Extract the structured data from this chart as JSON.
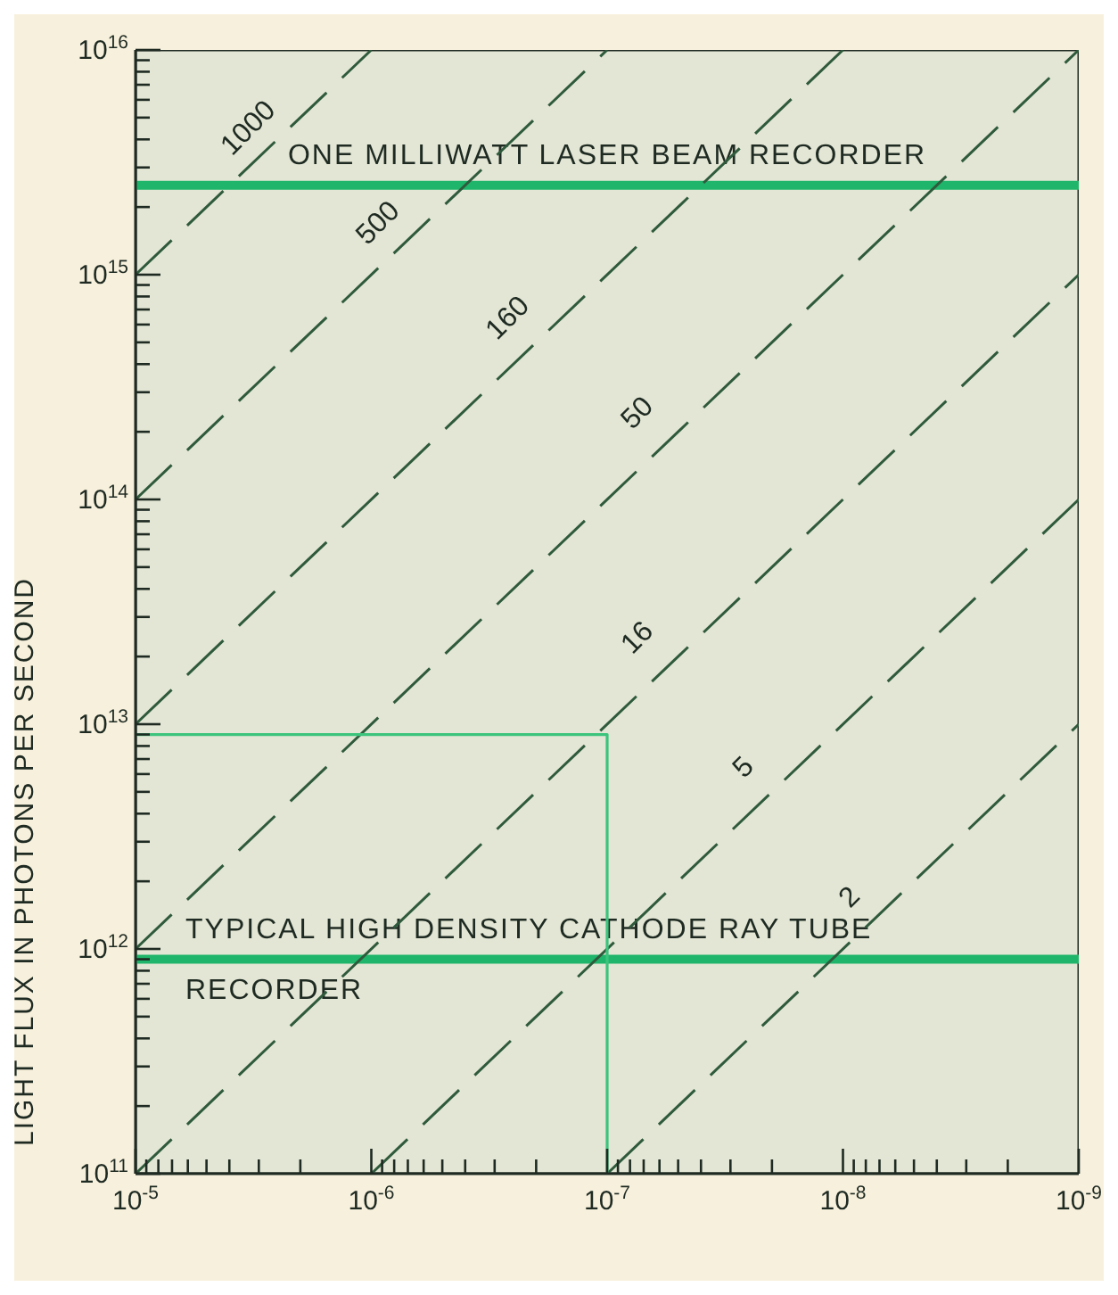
{
  "chart_data": {
    "type": "line",
    "ylabel": "LIGHT FLUX IN PHOTONS PER SECOND",
    "log": "xy",
    "marker": "none",
    "line_style": "dashed",
    "xlim": [
      1e-05,
      1e-09
    ],
    "ylim": [
      100000000000.0,
      1e+16
    ],
    "xticks": [
      {
        "value": 1e-05,
        "label": "10$^{-5}$"
      },
      {
        "value": 1e-06,
        "label": "10$^{-6}$"
      },
      {
        "value": 1e-07,
        "label": "10$^{-7}$"
      },
      {
        "value": 1e-08,
        "label": "10$^{-8}$"
      },
      {
        "value": 1e-09,
        "label": "10$^{-9}$"
      },
      {
        "value": 9e-06,
        "label": null
      },
      {
        "value": 8e-06,
        "label": null
      },
      {
        "value": 7e-06,
        "label": null
      },
      {
        "value": 6e-06,
        "label": null
      },
      {
        "value": 5e-06,
        "label": null
      },
      {
        "value": 4e-06,
        "label": null
      },
      {
        "value": 3e-06,
        "label": null
      },
      {
        "value": 2e-06,
        "label": null
      },
      {
        "value": 9e-07,
        "label": null
      },
      {
        "value": 8e-07,
        "label": null
      },
      {
        "value": 7e-07,
        "label": null
      },
      {
        "value": 6e-07,
        "label": null
      },
      {
        "value": 5e-07,
        "label": null
      },
      {
        "value": 4e-07,
        "label": null
      },
      {
        "value": 3e-07,
        "label": null
      },
      {
        "value": 2e-07,
        "label": null
      },
      {
        "value": 9e-08,
        "label": null
      },
      {
        "value": 8e-08,
        "label": null
      },
      {
        "value": 7e-08,
        "label": null
      },
      {
        "value": 6e-08,
        "label": null
      },
      {
        "value": 5e-08,
        "label": null
      },
      {
        "value": 4e-08,
        "label": null
      },
      {
        "value": 3e-08,
        "label": null
      },
      {
        "value": 2e-08,
        "label": null
      },
      {
        "value": 9e-09,
        "label": null
      },
      {
        "value": 8e-09,
        "label": null
      },
      {
        "value": 7e-09,
        "label": null
      },
      {
        "value": 6e-09,
        "label": null
      },
      {
        "value": 5e-09,
        "label": null
      },
      {
        "value": 4e-09,
        "label": null
      },
      {
        "value": 3e-09,
        "label": null
      },
      {
        "value": 2e-09,
        "label": null
      }
    ],
    "yticks": [
      {
        "value": 100000000000.0,
        "label": "10$^{11}$"
      },
      {
        "value": 1000000000000.0,
        "label": "10$^{12}$"
      },
      {
        "value": 10000000000000.0,
        "label": "10$^{13}$"
      },
      {
        "value": 100000000000000.0,
        "label": "10$^{14}$"
      },
      {
        "value": 1000000000000000.0,
        "label": "10$^{15}$"
      },
      {
        "value": 1e+16,
        "label": "10$^{16}$"
      },
      {
        "value": 200000000000.0,
        "label": null
      },
      {
        "value": 300000000000.0,
        "label": null
      },
      {
        "value": 400000000000.0,
        "label": null
      },
      {
        "value": 500000000000.0,
        "label": null
      },
      {
        "value": 600000000000.0,
        "label": null
      },
      {
        "value": 700000000000.0,
        "label": null
      },
      {
        "value": 800000000000.0,
        "label": null
      },
      {
        "value": 900000000000.0,
        "label": null
      },
      {
        "value": 2000000000000.0,
        "label": null
      },
      {
        "value": 3000000000000.0,
        "label": null
      },
      {
        "value": 4000000000000.0,
        "label": null
      },
      {
        "value": 5000000000000.0,
        "label": null
      },
      {
        "value": 6000000000000.0,
        "label": null
      },
      {
        "value": 7000000000000.0,
        "label": null
      },
      {
        "value": 8000000000000.0,
        "label": null
      },
      {
        "value": 9000000000000.0,
        "label": null
      },
      {
        "value": 20000000000000.0,
        "label": null
      },
      {
        "value": 30000000000000.0,
        "label": null
      },
      {
        "value": 40000000000000.0,
        "label": null
      },
      {
        "value": 50000000000000.0,
        "label": null
      },
      {
        "value": 60000000000000.0,
        "label": null
      },
      {
        "value": 70000000000000.0,
        "label": null
      },
      {
        "value": 80000000000000.0,
        "label": null
      },
      {
        "value": 90000000000000.0,
        "label": null
      },
      {
        "value": 200000000000000.0,
        "label": null
      },
      {
        "value": 300000000000000.0,
        "label": null
      },
      {
        "value": 400000000000000.0,
        "label": null
      },
      {
        "value": 500000000000000.0,
        "label": null
      },
      {
        "value": 600000000000000.0,
        "label": null
      },
      {
        "value": 700000000000000.0,
        "label": null
      },
      {
        "value": 800000000000000.0,
        "label": null
      },
      {
        "value": 900000000000000.0,
        "label": null
      },
      {
        "value": 2000000000000000.0,
        "label": null
      },
      {
        "value": 3000000000000000.0,
        "label": null
      },
      {
        "value": 4000000000000000.0,
        "label": null
      },
      {
        "value": 5000000000000000.0,
        "label": null
      },
      {
        "value": 6000000000000000.0,
        "label": null
      },
      {
        "value": 7000000000000000.0,
        "label": null
      },
      {
        "value": 8000000000000000.0,
        "label": null
      },
      {
        "value": 9000000000000000.0,
        "label": null
      }
    ],
    "series": [
      {
        "name": "1000",
        "color": "#2f5a3c",
        "x": [
          1e-05,
          1e-06
        ],
        "values": [
          1000000000000000.0,
          1e+16
        ]
      },
      {
        "name": "500",
        "color": "#2f5a3c",
        "x": [
          1e-05,
          1e-07
        ],
        "values": [
          100000000000000.0,
          1e+16
        ]
      },
      {
        "name": "160",
        "color": "#2f5a3c",
        "x": [
          1e-05,
          1e-08
        ],
        "values": [
          10000000000000.0,
          1e+16
        ]
      },
      {
        "name": "50",
        "color": "#2f5a3c",
        "x": [
          1e-05,
          1e-09
        ],
        "values": [
          1000000000000.0,
          1e+16
        ]
      },
      {
        "name": "16",
        "color": "#2f5a3c",
        "x": [
          1e-05,
          1e-09
        ],
        "values": [
          100000000000.0,
          1000000000000000.0
        ]
      },
      {
        "name": "5",
        "color": "#2f5a3c",
        "x": [
          1e-06,
          1e-09
        ],
        "values": [
          100000000000.0,
          100000000000000.0
        ]
      },
      {
        "name": "2",
        "color": "#2f5a3c",
        "x": [
          1e-07,
          1e-09
        ],
        "values": [
          100000000000.0,
          10000000000000.0
        ]
      },
      {
        "type": "line",
        "line_style": "solid",
        "color": "#3cc47d",
        "x": [
          1e-05,
          1e-07,
          1e-07
        ],
        "values": [
          9000000000000.0,
          9000000000000.0,
          100000000000.0
        ]
      }
    ],
    "ref_lines": [
      {
        "axis": "y",
        "value": 2500000000000000.0,
        "label": "ONE MILLIWATT LASER BEAM RECORDER",
        "color": "#1fb56a"
      },
      {
        "axis": "y",
        "value": 900000000000.0,
        "label": "TYPICAL HIGH DENSITY CATHODE RAY TUBE RECORDER",
        "color": "#1fb56a"
      }
    ]
  }
}
